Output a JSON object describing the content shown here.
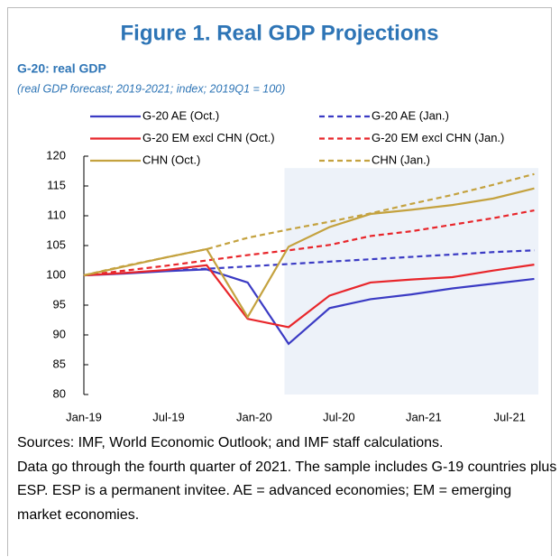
{
  "chart_data": {
    "type": "line",
    "title": "Figure 1. Real GDP Projections",
    "subtitle": "G-20: real GDP",
    "description": "(real GDP forecast; 2019-2021; index; 2019Q1 = 100)",
    "x": [
      0,
      1,
      2,
      3,
      4,
      5,
      6,
      7,
      8,
      9,
      10,
      11
    ],
    "xlim": [
      0,
      11.1
    ],
    "xticks": [
      {
        "value": 0,
        "label": "Jan-19"
      },
      {
        "value": 2.07,
        "label": "Jul-19"
      },
      {
        "value": 4.16,
        "label": "Jan-20"
      },
      {
        "value": 6.23,
        "label": "Jul-20"
      },
      {
        "value": 8.3,
        "label": "Jan-21"
      },
      {
        "value": 10.4,
        "label": "Jul-21"
      }
    ],
    "ylim": [
      80,
      120
    ],
    "yticks": [
      80,
      85,
      90,
      95,
      100,
      105,
      110,
      115,
      120
    ],
    "shaded_region": {
      "x": [
        4.9,
        11.1
      ],
      "y": [
        80,
        118
      ]
    },
    "series": [
      {
        "name": "G-20 AE (Oct.)",
        "color": "#3b3bc4",
        "dashed": false,
        "values": [
          100,
          100.3,
          100.7,
          101,
          98.8,
          88.5,
          94.5,
          96,
          96.8,
          97.8,
          98.6,
          99.4
        ]
      },
      {
        "name": "G-20 AE (Jan.)",
        "color": "#3b3bc4",
        "dashed": true,
        "values": [
          100,
          100.4,
          100.8,
          101.1,
          101.5,
          101.9,
          102.3,
          102.7,
          103.1,
          103.5,
          103.9,
          104.2
        ]
      },
      {
        "name": "G-20 EM excl CHN (Oct.)",
        "color": "#e8262b",
        "dashed": false,
        "values": [
          100,
          100.4,
          100.9,
          101.7,
          92.7,
          91.3,
          96.6,
          98.8,
          99.3,
          99.7,
          100.8,
          101.8
        ]
      },
      {
        "name": "G-20 EM excl CHN (Jan.)",
        "color": "#e8262b",
        "dashed": true,
        "values": [
          100,
          100.8,
          101.6,
          102.5,
          103.4,
          104.2,
          105.1,
          106.6,
          107.4,
          108.5,
          109.6,
          110.9
        ]
      },
      {
        "name": "CHN (Oct.)",
        "color": "#c4a23f",
        "dashed": false,
        "values": [
          100,
          101.5,
          103,
          104.4,
          93,
          104.8,
          108.1,
          110.3,
          111,
          111.8,
          112.9,
          114.6
        ]
      },
      {
        "name": "CHN (Jan.)",
        "color": "#c4a23f",
        "dashed": true,
        "values": [
          100,
          101.6,
          103,
          104.4,
          106.3,
          107.7,
          109,
          110.4,
          112,
          113.5,
          115.2,
          117
        ]
      }
    ],
    "notes": [
      "Sources: IMF, World Economic Outlook; and IMF staff calculations.",
      "Data go through the fourth quarter of 2021. The sample includes G-19 countries plus ESP. ESP is a permanent invitee. AE = advanced economies; EM = emerging market economies."
    ]
  }
}
